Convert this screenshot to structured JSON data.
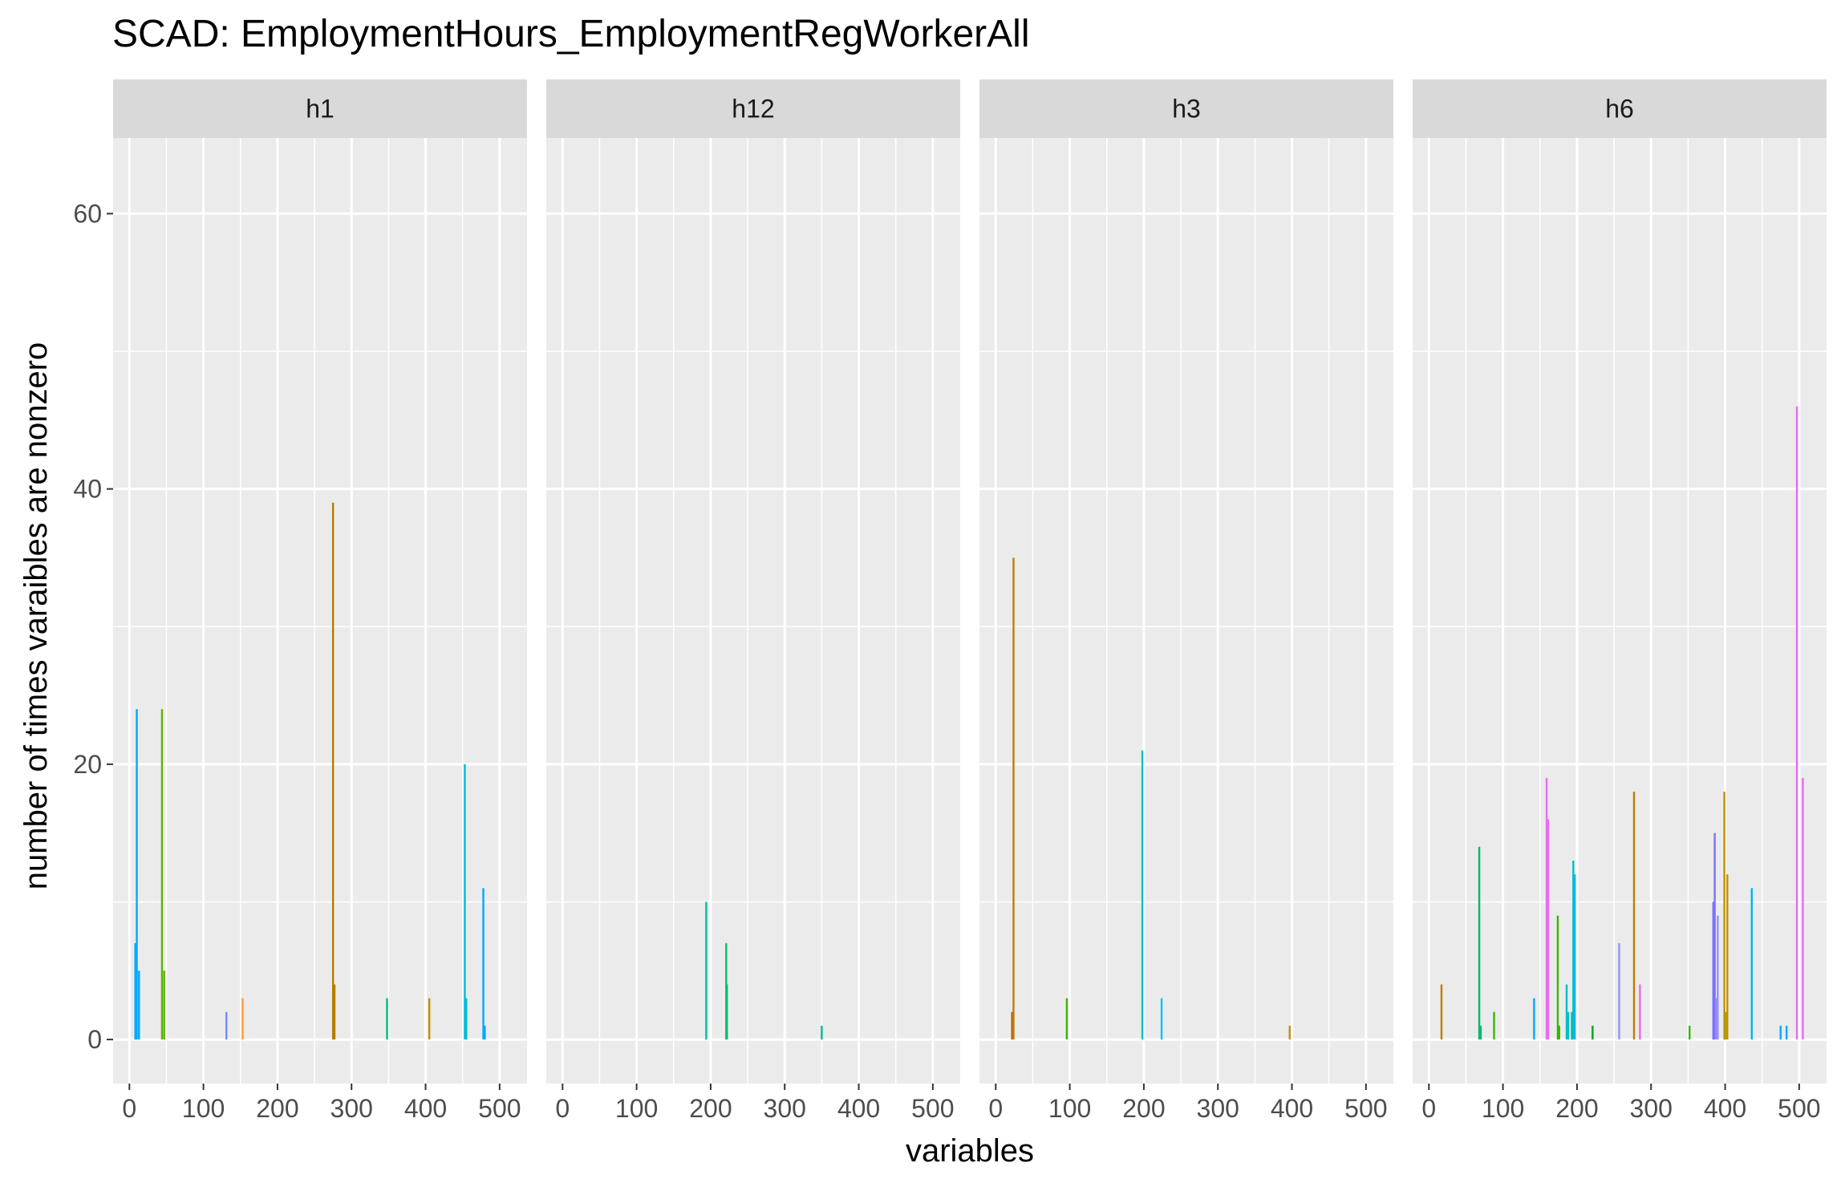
{
  "chart_data": {
    "type": "bar",
    "title": "SCAD: EmploymentHours_EmploymentRegWorkerAll",
    "xlabel": "variables",
    "ylabel": "number of times varaibles are nonzero",
    "xlim": [
      -22,
      537
    ],
    "ylim": [
      -3.2,
      65.5
    ],
    "x_ticks": [
      0,
      100,
      200,
      300,
      400,
      500
    ],
    "y_ticks": [
      0,
      20,
      40,
      60
    ],
    "grid": true,
    "legend": "none",
    "panels": [
      {
        "name": "h1",
        "bars": [
          {
            "x": 8,
            "y": 7,
            "color": "#00a5ff"
          },
          {
            "x": 10,
            "y": 24,
            "color": "#00a9ff"
          },
          {
            "x": 13,
            "y": 5,
            "color": "#00a9ff"
          },
          {
            "x": 44,
            "y": 24,
            "color": "#5bb300"
          },
          {
            "x": 47,
            "y": 5,
            "color": "#5bb300"
          },
          {
            "x": 131,
            "y": 2,
            "color": "#6e8fff"
          },
          {
            "x": 153,
            "y": 3,
            "color": "#ff9d2e"
          },
          {
            "x": 275,
            "y": 39,
            "color": "#b47d00"
          },
          {
            "x": 277,
            "y": 4,
            "color": "#b47d00"
          },
          {
            "x": 348,
            "y": 3,
            "color": "#00be7d"
          },
          {
            "x": 405,
            "y": 3,
            "color": "#c09000"
          },
          {
            "x": 453,
            "y": 20,
            "color": "#00bcd8"
          },
          {
            "x": 455,
            "y": 3,
            "color": "#00bcd8"
          },
          {
            "x": 478,
            "y": 11,
            "color": "#00a9ff"
          },
          {
            "x": 480,
            "y": 1,
            "color": "#00a9ff"
          }
        ]
      },
      {
        "name": "h12",
        "bars": [
          {
            "x": 194,
            "y": 10,
            "color": "#00bfa0"
          },
          {
            "x": 221,
            "y": 7,
            "color": "#00be70"
          },
          {
            "x": 222,
            "y": 4,
            "color": "#00be70"
          },
          {
            "x": 350,
            "y": 1,
            "color": "#00bf9a"
          }
        ]
      },
      {
        "name": "h3",
        "bars": [
          {
            "x": 22,
            "y": 2,
            "color": "#c06000"
          },
          {
            "x": 24,
            "y": 35,
            "color": "#c07d00"
          },
          {
            "x": 96,
            "y": 3,
            "color": "#39b600"
          },
          {
            "x": 198,
            "y": 21,
            "color": "#00c1c6"
          },
          {
            "x": 224,
            "y": 3,
            "color": "#00c0ff"
          },
          {
            "x": 397,
            "y": 1,
            "color": "#c09000"
          }
        ]
      },
      {
        "name": "h6",
        "bars": [
          {
            "x": 17,
            "y": 4,
            "color": "#c07d00"
          },
          {
            "x": 68,
            "y": 14,
            "color": "#00b86a"
          },
          {
            "x": 70,
            "y": 1,
            "color": "#00b86a"
          },
          {
            "x": 88,
            "y": 2,
            "color": "#39b600"
          },
          {
            "x": 142,
            "y": 3,
            "color": "#00a9ff"
          },
          {
            "x": 159,
            "y": 19,
            "color": "#e76bf3"
          },
          {
            "x": 161,
            "y": 16,
            "color": "#e76bf3"
          },
          {
            "x": 174,
            "y": 9,
            "color": "#39b600"
          },
          {
            "x": 176,
            "y": 1,
            "color": "#39b600"
          },
          {
            "x": 186,
            "y": 4,
            "color": "#00bfc4"
          },
          {
            "x": 188,
            "y": 2,
            "color": "#00bfc4"
          },
          {
            "x": 193,
            "y": 2,
            "color": "#00c094"
          },
          {
            "x": 195,
            "y": 13,
            "color": "#00bfc4"
          },
          {
            "x": 197,
            "y": 12,
            "color": "#00b8e7"
          },
          {
            "x": 221,
            "y": 1,
            "color": "#00a600"
          },
          {
            "x": 257,
            "y": 7,
            "color": "#9590ff"
          },
          {
            "x": 277,
            "y": 18,
            "color": "#c07d00"
          },
          {
            "x": 285,
            "y": 4,
            "color": "#e76bf3"
          },
          {
            "x": 352,
            "y": 1,
            "color": "#39b600"
          },
          {
            "x": 384,
            "y": 10,
            "color": "#7c72ff"
          },
          {
            "x": 386,
            "y": 15,
            "color": "#7c72ff"
          },
          {
            "x": 388,
            "y": 3,
            "color": "#9590ff"
          },
          {
            "x": 390,
            "y": 9,
            "color": "#9590ff"
          },
          {
            "x": 399,
            "y": 18,
            "color": "#c09000"
          },
          {
            "x": 401,
            "y": 2,
            "color": "#a3a500"
          },
          {
            "x": 403,
            "y": 12,
            "color": "#c09000"
          },
          {
            "x": 436,
            "y": 11,
            "color": "#00b0f6"
          },
          {
            "x": 475,
            "y": 1,
            "color": "#00a9ff"
          },
          {
            "x": 483,
            "y": 1,
            "color": "#00a9ff"
          },
          {
            "x": 497,
            "y": 46,
            "color": "#e76bf3"
          },
          {
            "x": 505,
            "y": 19,
            "color": "#e76bf3"
          }
        ]
      }
    ]
  }
}
